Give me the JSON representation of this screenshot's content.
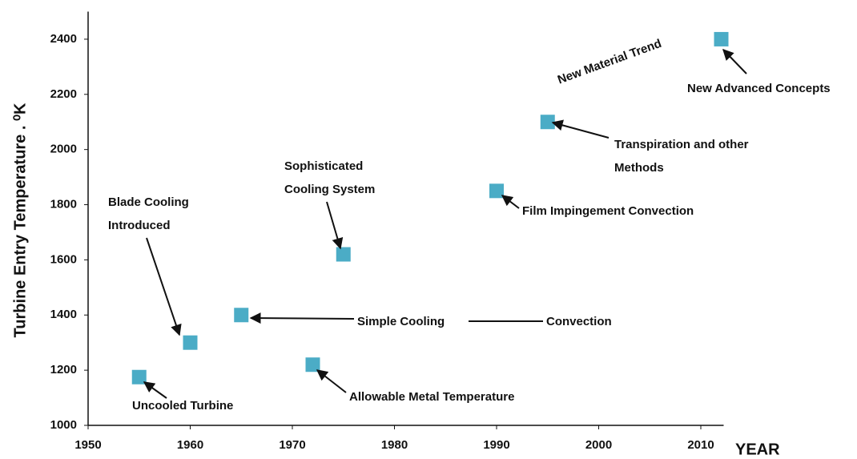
{
  "chart_data": {
    "type": "scatter",
    "x_label": "YEAR",
    "y_label": "Turbine Entry Temperature . ⁰K",
    "series": [
      {
        "color": "#4bacc6",
        "x": [
          1955,
          1960,
          1965,
          1972,
          1975,
          1990,
          1995,
          2012
        ],
        "values": [
          1175,
          1300,
          1400,
          1220,
          1620,
          1850,
          2100,
          2400
        ]
      }
    ],
    "xlim": [
      1950,
      2012
    ],
    "xticks": [
      1950,
      1960,
      1970,
      1980,
      1990,
      2000,
      2010
    ],
    "ylim": [
      1000,
      2500
    ],
    "yticks": [
      1000,
      1200,
      1400,
      1600,
      1800,
      2000,
      2200,
      2400
    ],
    "annotations": [
      [
        "Blade Cooling",
        "Introduced"
      ],
      [
        "Sophisticated",
        "Cooling System"
      ],
      [
        "Simple Cooling"
      ],
      [
        "Convection"
      ],
      [
        "Uncooled Turbine"
      ],
      [
        "Allowable Metal Temperature"
      ],
      [
        "Film Impingement Convection"
      ],
      [
        "Transpiration and other",
        "Methods"
      ],
      [
        "New Advanced Concepts"
      ],
      [
        "New Material Trend"
      ]
    ]
  }
}
